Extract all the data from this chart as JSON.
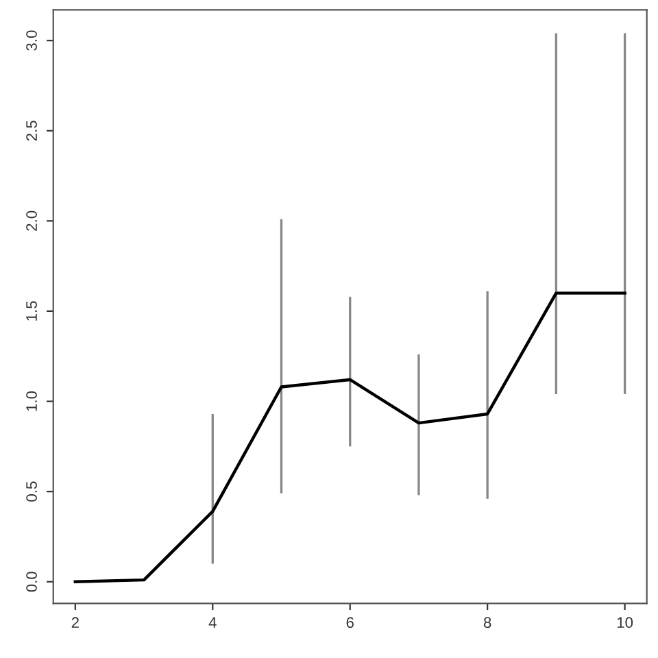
{
  "chart_data": {
    "type": "line",
    "x": [
      2,
      3,
      4,
      5,
      6,
      7,
      8,
      9,
      10
    ],
    "series": [
      {
        "color": "#000000",
        "values": [
          0,
          0.01,
          0.39,
          1.08,
          1.12,
          0.88,
          0.93,
          1.6,
          1.6
        ],
        "errors": [
          null,
          null,
          [
            0.1,
            0.93
          ],
          [
            0.49,
            2.01
          ],
          [
            0.75,
            1.58
          ],
          [
            0.48,
            1.26
          ],
          [
            0.46,
            1.61
          ],
          [
            1.04,
            3.04
          ],
          [
            1.04,
            3.04
          ]
        ]
      }
    ],
    "xlim": [
      1.68,
      10.32
    ],
    "ylim": [
      -0.12,
      3.17
    ],
    "xticks": [
      2,
      4,
      6,
      8,
      10
    ],
    "yticks": [
      {
        "value": 0,
        "label": "0.0"
      },
      {
        "value": 0.5,
        "label": "0.5"
      },
      {
        "value": 1,
        "label": "1.0"
      },
      {
        "value": 1.5,
        "label": "1.5"
      },
      {
        "value": 2,
        "label": "2.0"
      },
      {
        "value": 2.5,
        "label": "2.5"
      },
      {
        "value": 3,
        "label": "3.0"
      }
    ],
    "grid": false,
    "legend": false
  }
}
